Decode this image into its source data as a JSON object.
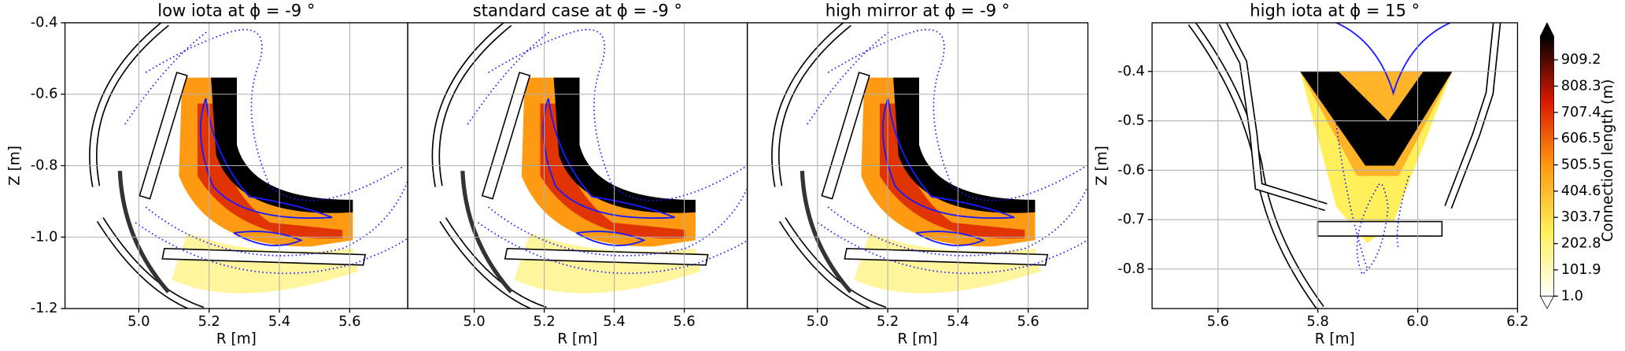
{
  "chart_data": [
    {
      "type": "heatmap",
      "title": "low iota at ϕ = -9 °",
      "xlabel": "R [m]",
      "ylabel": "Z [m]",
      "grid": true,
      "xlim": [
        4.79,
        5.765
      ],
      "ylim": [
        -1.2,
        -0.4
      ],
      "xticks": [
        {
          "value": 5,
          "label": "5.0"
        },
        5.2,
        5.4,
        5.6
      ],
      "yticks": [
        -1.2,
        {
          "value": -1,
          "label": "-1.0"
        },
        -0.8,
        -0.6,
        -0.4
      ]
    },
    {
      "type": "heatmap",
      "title": "standard case at ϕ = -9 °",
      "xlabel": "R [m]",
      "grid": true,
      "xlim": [
        4.81,
        5.78
      ],
      "ylim": [
        -1.2,
        -0.4
      ],
      "xticks": [
        {
          "value": 5,
          "label": "5.0"
        },
        5.2,
        5.4,
        5.6
      ],
      "yticks": [
        -1.2,
        -1,
        -0.8,
        -0.6,
        -0.4
      ],
      "show_ytick_labels": false
    },
    {
      "type": "heatmap",
      "title": "high mirror at ϕ = -9 °",
      "xlabel": "R [m]",
      "grid": true,
      "xlim": [
        4.8,
        5.77
      ],
      "ylim": [
        -1.2,
        -0.4
      ],
      "xticks": [
        {
          "value": 5,
          "label": "5.0"
        },
        5.2,
        5.4,
        5.6
      ],
      "yticks": [
        -1.2,
        -1,
        -0.8,
        -0.6,
        -0.4
      ],
      "show_ytick_labels": false
    },
    {
      "type": "heatmap",
      "title": "high iota at ϕ = 15 °",
      "xlabel": "R [m]",
      "ylabel": "Z [m]",
      "grid": true,
      "xlim": [
        5.468,
        6.2
      ],
      "ylim": [
        -0.88,
        -0.3015
      ],
      "xticks": [
        5.6,
        5.8,
        {
          "value": 6,
          "label": "6.0"
        },
        6.2
      ],
      "yticks": [
        -0.8,
        -0.7,
        -0.6,
        -0.5,
        -0.4
      ],
      "colorbar": {
        "label": "Connection length (m)",
        "lim": [
          1,
          1000
        ],
        "ticks": [
          {
            "value": 1,
            "label": "1.0"
          },
          101.9,
          202.8,
          303.7,
          404.6,
          505.5,
          606.5,
          707.4,
          808.3,
          909.2
        ],
        "colormap": [
          "#ffffff",
          "#ffef5a",
          "#ff9a12",
          "#d81a00",
          "#000000"
        ]
      }
    }
  ]
}
